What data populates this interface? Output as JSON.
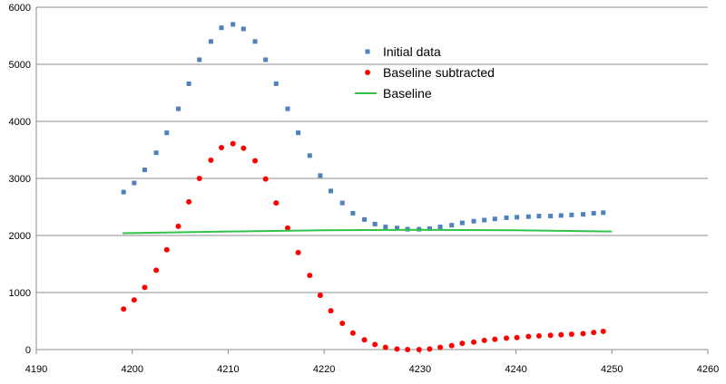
{
  "chart_data": {
    "type": "scatter",
    "title": "",
    "xlabel": "",
    "ylabel": "",
    "xlim": [
      4190,
      4260
    ],
    "ylim": [
      0,
      6000
    ],
    "xticks": [
      4190,
      4200,
      4210,
      4220,
      4230,
      4240,
      4250,
      4260
    ],
    "yticks": [
      0,
      1000,
      2000,
      3000,
      4000,
      5000,
      6000
    ],
    "grid": "horizontal",
    "legend_position": "top-center",
    "series": [
      {
        "name": "Initial data",
        "kind": "square-markers",
        "color": "#4F81BD",
        "x": [
          4199.1,
          4200.2,
          4201.3,
          4202.5,
          4203.6,
          4204.8,
          4205.9,
          4207.0,
          4208.2,
          4209.3,
          4210.5,
          4211.6,
          4212.8,
          4213.9,
          4215.0,
          4216.2,
          4217.3,
          4218.5,
          4219.6,
          4220.7,
          4221.9,
          4223.0,
          4224.2,
          4225.3,
          4226.4,
          4227.6,
          4228.7,
          4229.9,
          4231.0,
          4232.1,
          4233.3,
          4234.4,
          4235.6,
          4236.7,
          4237.8,
          4239.0,
          4240.1,
          4241.3,
          4242.4,
          4243.6,
          4244.7,
          4245.8,
          4247.0,
          4248.1,
          4249.1
        ],
        "y": [
          2760,
          2920,
          3150,
          3450,
          3800,
          4220,
          4660,
          5080,
          5400,
          5640,
          5700,
          5620,
          5400,
          5080,
          4660,
          4220,
          3800,
          3400,
          3050,
          2780,
          2570,
          2390,
          2280,
          2200,
          2150,
          2130,
          2110,
          2110,
          2120,
          2150,
          2180,
          2220,
          2250,
          2270,
          2290,
          2310,
          2320,
          2330,
          2340,
          2340,
          2350,
          2360,
          2370,
          2390,
          2400
        ]
      },
      {
        "name": "Baseline subtracted",
        "kind": "circle-markers",
        "color": "#FF0000",
        "x": [
          4199.1,
          4200.2,
          4201.3,
          4202.5,
          4203.6,
          4204.8,
          4205.9,
          4207.0,
          4208.2,
          4209.3,
          4210.5,
          4211.6,
          4212.8,
          4213.9,
          4215.0,
          4216.2,
          4217.3,
          4218.5,
          4219.6,
          4220.7,
          4221.9,
          4223.0,
          4224.2,
          4225.3,
          4226.4,
          4227.6,
          4228.7,
          4229.9,
          4231.0,
          4232.1,
          4233.3,
          4234.4,
          4235.6,
          4236.7,
          4237.8,
          4239.0,
          4240.1,
          4241.3,
          4242.4,
          4243.6,
          4244.7,
          4245.8,
          4247.0,
          4248.1,
          4249.1
        ],
        "y": [
          710,
          870,
          1090,
          1390,
          1750,
          2160,
          2590,
          3000,
          3320,
          3540,
          3610,
          3530,
          3310,
          2990,
          2570,
          2130,
          1700,
          1300,
          950,
          680,
          460,
          290,
          170,
          90,
          40,
          10,
          0,
          0,
          10,
          40,
          70,
          110,
          130,
          160,
          180,
          200,
          210,
          230,
          240,
          250,
          260,
          270,
          280,
          300,
          320
        ]
      },
      {
        "name": "Baseline",
        "kind": "line",
        "color": "#2FC34A",
        "x": [
          4199,
          4210,
          4220,
          4230,
          4240,
          4250
        ],
        "y": [
          2040,
          2070,
          2090,
          2100,
          2090,
          2070
        ]
      }
    ]
  }
}
